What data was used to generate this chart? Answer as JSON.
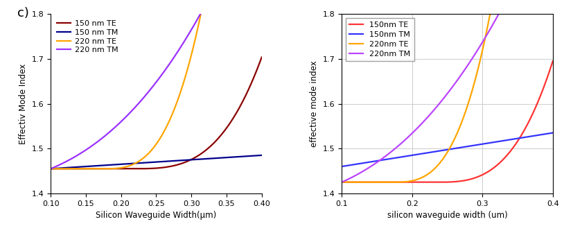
{
  "xlim": [
    0.1,
    0.4
  ],
  "ylim": [
    1.4,
    1.8
  ],
  "xlabel_left": "Silicon Waveguide Width(μm)",
  "xlabel_right": "silicon waveguide width (um)",
  "ylabel_left": "Effectiv Mode Index",
  "ylabel_right": "effective mode index",
  "label_c": "c)",
  "legend_left": [
    "150 nm TE",
    "150 nm TM",
    "220 nm TE",
    "220 nm TM"
  ],
  "legend_right": [
    "150nm TE",
    "150nm TM",
    "220nm TE",
    "220nm TM"
  ],
  "colors_left": [
    "#8B0000",
    "#00008B",
    "#FFA500",
    "#9B30FF"
  ],
  "colors_right": [
    "#FF3333",
    "#3333FF",
    "#FFA500",
    "#BB44FF"
  ],
  "xticks_left": [
    0.1,
    0.15,
    0.2,
    0.25,
    0.3,
    0.35,
    0.4
  ],
  "xticks_right": [
    0.1,
    0.2,
    0.3,
    0.4
  ],
  "yticks": [
    1.4,
    1.5,
    1.6,
    1.7,
    1.8
  ],
  "background": "#ffffff",
  "figsize": [
    8.14,
    3.36
  ],
  "dpi": 100
}
